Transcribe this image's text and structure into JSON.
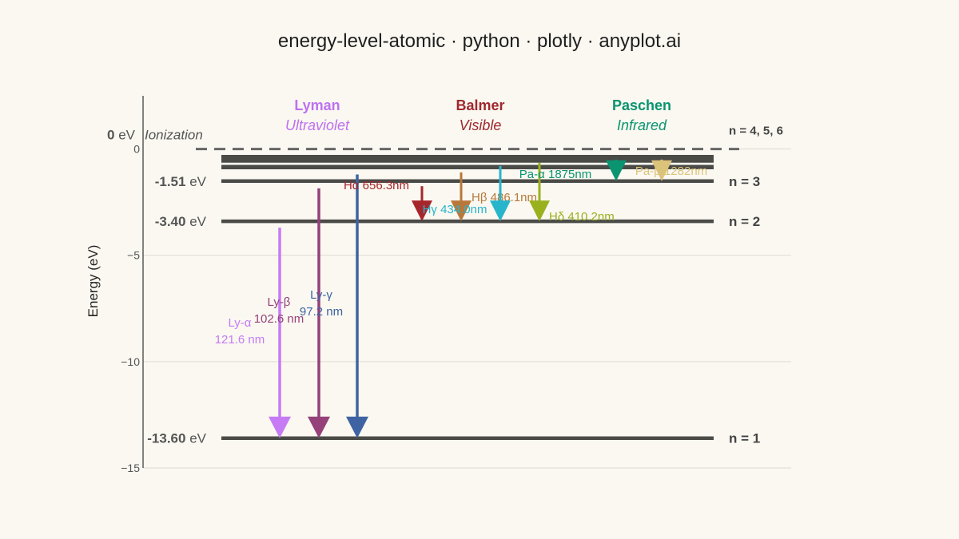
{
  "title": "energy-level-atomic · python · plotly · anyplot.ai",
  "chart_data": {
    "type": "energy-level-diagram",
    "ylabel": "Energy (eV)",
    "ylim": [
      -15,
      2.5
    ],
    "yticks": [
      {
        "value": 0,
        "label": "0"
      },
      {
        "value": -5,
        "label": "−5"
      },
      {
        "value": -10,
        "label": "−10"
      },
      {
        "value": -15,
        "label": "−15"
      }
    ],
    "grid": true,
    "ionization": {
      "energy": 0,
      "value_label": "0",
      "unit": "eV",
      "label": "Ionization",
      "n_label": "n = 4, 5, 6"
    },
    "levels": [
      {
        "n": 1,
        "energy": -13.6,
        "value_label": "-13.60",
        "unit": "eV",
        "n_label": "n = 1"
      },
      {
        "n": 2,
        "energy": -3.4,
        "value_label": "-3.40",
        "unit": "eV",
        "n_label": "n = 2"
      },
      {
        "n": 3,
        "energy": -1.51,
        "value_label": "-1.51",
        "unit": "eV",
        "n_label": "n = 3"
      },
      {
        "n": 4,
        "energy": -0.85
      },
      {
        "n": 5,
        "energy": -0.54
      },
      {
        "n": 6,
        "energy": -0.38
      }
    ],
    "series": [
      {
        "name": "Lyman",
        "region": "Ultraviolet",
        "color": "#BF70F2"
      },
      {
        "name": "Balmer",
        "region": "Visible",
        "color": "#A0282E"
      },
      {
        "name": "Paschen",
        "region": "Infrared",
        "color": "#0A9470"
      }
    ],
    "transitions": [
      {
        "name": "Ly-α",
        "wavelength": "121.6 nm",
        "from_energy": -3.7,
        "to_energy": -13.6,
        "color": "#C67BF5"
      },
      {
        "name": "Ly-β",
        "wavelength": "102.6 nm",
        "from_energy": -1.85,
        "to_energy": -13.6,
        "color": "#95417A"
      },
      {
        "name": "Ly-γ",
        "wavelength": "97.2 nm",
        "from_energy": -1.2,
        "to_energy": -13.6,
        "color": "#3F63A2"
      },
      {
        "name": "Hα",
        "label": "Hα 656.3nm",
        "from_energy": -1.75,
        "to_energy": -3.4,
        "color": "#A7262C"
      },
      {
        "name": "Hβ",
        "label": "Hβ 486.1nm",
        "from_energy": -1.1,
        "to_energy": -3.4,
        "color": "#B8783A"
      },
      {
        "name": "Hγ",
        "label": "Hγ 434.0nm",
        "from_energy": -0.8,
        "to_energy": -3.4,
        "color": "#27B5CB"
      },
      {
        "name": "Hδ",
        "label": "Hδ 410.2nm",
        "from_energy": -0.65,
        "to_energy": -3.4,
        "color": "#9AB11E"
      },
      {
        "name": "Pa-α",
        "label": "Pa-α 1875nm",
        "from_energy": -0.5,
        "to_energy": -1.51,
        "color": "#0A9470"
      },
      {
        "name": "Pa-β",
        "label": "Pa-β 1282nm",
        "from_energy": -0.5,
        "to_energy": -1.51,
        "color": "#DCC37A"
      }
    ]
  }
}
